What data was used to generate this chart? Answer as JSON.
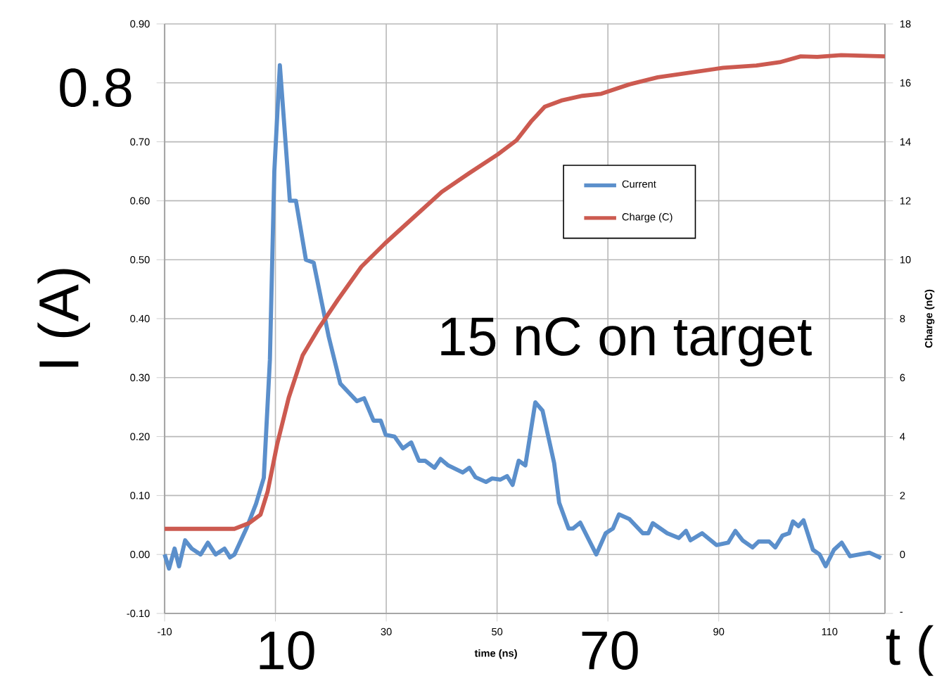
{
  "chart_data": {
    "type": "line",
    "xlabel": "time (ns)",
    "ylabel": "I (A)",
    "y2label": "Charge (nC)",
    "xlim": [
      -10,
      120
    ],
    "xticks": [
      -10,
      {
        "value": 10,
        "label": null
      },
      30,
      50,
      {
        "value": 70,
        "label": null
      },
      90,
      110
    ],
    "ylim": [
      -0.1,
      0.9
    ],
    "yticks": [
      {
        "value": -0.1,
        "label": "-0.10"
      },
      {
        "value": 0,
        "label": "0.00"
      },
      {
        "value": 0.1,
        "label": "0.10"
      },
      {
        "value": 0.2,
        "label": "0.20"
      },
      {
        "value": 0.3,
        "label": "0.30"
      },
      {
        "value": 0.4,
        "label": "0.40"
      },
      {
        "value": 0.5,
        "label": "0.50"
      },
      {
        "value": 0.6,
        "label": "0.60"
      },
      {
        "value": 0.7,
        "label": "0.70"
      },
      {
        "value": 0.8,
        "label": null
      },
      {
        "value": 0.9,
        "label": "0.90"
      }
    ],
    "y2lim": [
      -2,
      18
    ],
    "y2ticks": [
      {
        "value": -2,
        "label": "-"
      },
      0,
      2,
      4,
      6,
      8,
      10,
      12,
      14,
      16,
      18
    ],
    "grid": true,
    "legend": "top right",
    "marker": "none",
    "line_style": "solid",
    "annotations": [
      "0.8",
      "10",
      "70",
      "t (",
      "15 nC on target"
    ],
    "series": [
      {
        "name": "Current",
        "color": "#5b8fcb",
        "x": [
          -10,
          -9.2,
          -8.2,
          -7.4,
          -6.3,
          -5.1,
          -3.5,
          -2.2,
          -0.8,
          0.8,
          1.8,
          2.6,
          4.8,
          6.5,
          7.9,
          9.0,
          9.8,
          10.8,
          12.6,
          13.7,
          15.5,
          16.9,
          19.6,
          21.7,
          24.7,
          26.0,
          27.7,
          29.0,
          29.9,
          31.5,
          33.0,
          34.5,
          35.9,
          37.0,
          38.7,
          39.8,
          41.2,
          43.8,
          45.0,
          46.1,
          48.0,
          49.1,
          50.6,
          51.8,
          52.8,
          53.9,
          55.1,
          56.9,
          58.2,
          60.3,
          61.2,
          62.9,
          63.7,
          65.0,
          67.9,
          69.6,
          70.9,
          72.0,
          73.9,
          76.3,
          77.3,
          78.1,
          80.7,
          82.8,
          84.1,
          84.9,
          87.0,
          89.6,
          91.7,
          93.0,
          94.3,
          96.1,
          97.2,
          99.1,
          100.2,
          101.5,
          102.7,
          103.4,
          104.4,
          105.3,
          107.0,
          108.2,
          109.3,
          110.8,
          112.2,
          113.7,
          115.4,
          117.2,
          119.3
        ],
        "values": [
          0.0,
          -0.024,
          0.01,
          -0.02,
          0.024,
          0.01,
          0.0,
          0.02,
          0.0,
          0.01,
          -0.005,
          0.0,
          0.045,
          0.086,
          0.13,
          0.33,
          0.65,
          0.83,
          0.6,
          0.6,
          0.5,
          0.495,
          0.37,
          0.29,
          0.26,
          0.265,
          0.227,
          0.227,
          0.203,
          0.2,
          0.18,
          0.19,
          0.159,
          0.159,
          0.147,
          0.162,
          0.151,
          0.139,
          0.147,
          0.131,
          0.123,
          0.129,
          0.127,
          0.133,
          0.118,
          0.159,
          0.151,
          0.258,
          0.244,
          0.155,
          0.088,
          0.044,
          0.044,
          0.054,
          0.0,
          0.036,
          0.044,
          0.068,
          0.06,
          0.036,
          0.036,
          0.053,
          0.036,
          0.028,
          0.04,
          0.024,
          0.036,
          0.016,
          0.02,
          0.04,
          0.024,
          0.012,
          0.022,
          0.022,
          0.012,
          0.032,
          0.036,
          0.056,
          0.048,
          0.058,
          0.008,
          0.0,
          -0.02,
          0.008,
          0.02,
          -0.003,
          0.0,
          0.003,
          -0.006
        ]
      },
      {
        "name": "Charge (C)",
        "color": "#cc5a50",
        "axis": "y2",
        "x": [
          -10,
          2.6,
          5.2,
          7.3,
          8.6,
          10.3,
          12.4,
          14.9,
          17.9,
          21.3,
          25.5,
          29.8,
          34.9,
          40.0,
          45.0,
          50.1,
          53.5,
          56.1,
          58.6,
          61.6,
          65.4,
          68.8,
          73.9,
          79.0,
          84.9,
          90.8,
          96.8,
          101.0,
          104.8,
          107.8,
          112.1,
          120
        ],
        "values": [
          0.87,
          0.87,
          1.06,
          1.35,
          2.14,
          3.73,
          5.32,
          6.75,
          7.7,
          8.65,
          9.76,
          10.56,
          11.43,
          12.3,
          12.94,
          13.57,
          14.05,
          14.68,
          15.19,
          15.4,
          15.56,
          15.63,
          15.95,
          16.19,
          16.35,
          16.51,
          16.59,
          16.7,
          16.9,
          16.88,
          16.94,
          16.9
        ]
      }
    ]
  }
}
